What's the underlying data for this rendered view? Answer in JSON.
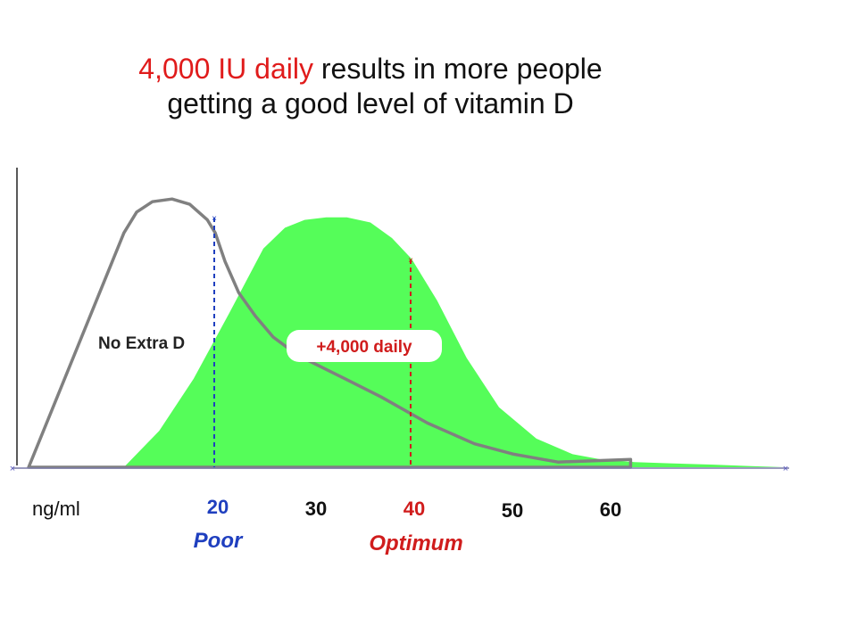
{
  "title": {
    "highlight": "4,000 IU daily",
    "rest_line1": " results in more people",
    "line2": "getting a good level of vitamin D"
  },
  "colors": {
    "highlight": "#e01b1b",
    "poor": "#1f3fbf",
    "optimum": "#d01c1c",
    "extra_fill": "#55fd59",
    "no_extra_line": "#808080"
  },
  "chart_data": {
    "type": "area",
    "x_unit_label": "ng/ml",
    "x_ticks": [
      {
        "value": 20,
        "label": "20",
        "color": "#1f3fbf"
      },
      {
        "value": 30,
        "label": "30",
        "color": "#111111"
      },
      {
        "value": 40,
        "label": "40",
        "color": "#d01c1c"
      },
      {
        "value": 50,
        "label": "50",
        "color": "#111111"
      },
      {
        "value": 60,
        "label": "60",
        "color": "#111111"
      }
    ],
    "xlim": [
      0,
      78
    ],
    "ylim": [
      0,
      1
    ],
    "reference_lines": [
      {
        "x": 20,
        "label": "Poor",
        "color": "#1f3fbf",
        "style": "dashed"
      },
      {
        "x": 40,
        "label": "Optimum",
        "color": "#d01c1c",
        "style": "dashed"
      }
    ],
    "series": [
      {
        "name": "No Extra D",
        "kind": "line",
        "color": "#808080",
        "x": [
          1.1,
          10.8,
          12.1,
          13.7,
          15.7,
          17.5,
          19.3,
          20.1,
          21.1,
          22.5,
          24.2,
          26.0,
          28.5,
          33.3,
          37.0,
          41.7,
          46.5,
          50.5,
          55.0,
          62.4
        ],
        "y": [
          0.0,
          0.9,
          0.98,
          1.02,
          1.03,
          1.01,
          0.95,
          0.9,
          0.79,
          0.67,
          0.58,
          0.5,
          0.43,
          0.34,
          0.27,
          0.17,
          0.09,
          0.05,
          0.02,
          0.03
        ]
      },
      {
        "name": "+4,000 daily",
        "kind": "area",
        "color": "#55fd59",
        "x": [
          10.8,
          14.4,
          17.9,
          21.5,
          25.0,
          27.2,
          29.2,
          31.4,
          33.5,
          35.9,
          38.1,
          40.1,
          42.7,
          45.7,
          49.0,
          52.8,
          56.5,
          59.4,
          62.8,
          66.4,
          70.9,
          74.7,
          78.0
        ],
        "y": [
          0.0,
          0.14,
          0.34,
          0.59,
          0.84,
          0.92,
          0.95,
          0.96,
          0.96,
          0.94,
          0.88,
          0.8,
          0.64,
          0.42,
          0.23,
          0.11,
          0.05,
          0.03,
          0.02,
          0.015,
          0.01,
          0.004,
          0.0
        ]
      }
    ]
  }
}
